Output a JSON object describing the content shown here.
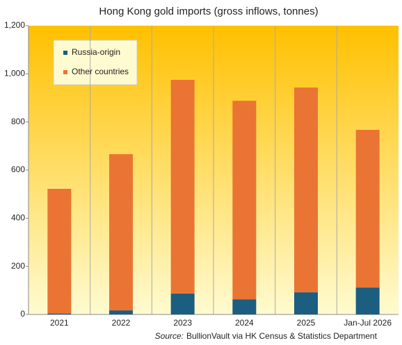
{
  "chart_data": {
    "type": "stacked-bar",
    "title": "Hong Kong gold imports (gross inflows, tonnes)",
    "categories": [
      "2021",
      "2022",
      "2023",
      "2024",
      "2025",
      "Jan-Jul 2026"
    ],
    "series": [
      {
        "name": "Russia-origin",
        "color": "#1b5e80",
        "values": [
          4,
          17,
          87,
          63,
          92,
          112
        ]
      },
      {
        "name": "Other countries",
        "color": "#ea7434",
        "values": [
          518,
          649,
          888,
          825,
          851,
          655
        ]
      }
    ],
    "ylim": [
      0,
      1200
    ],
    "yticks": [
      0,
      200,
      400,
      600,
      800,
      {
        "value": 1000,
        "label": "1,000"
      },
      {
        "value": 1200,
        "label": "1,200"
      }
    ],
    "source_label": "Source:",
    "source_text": "BullionVault via HK Census & Statistics Department"
  }
}
